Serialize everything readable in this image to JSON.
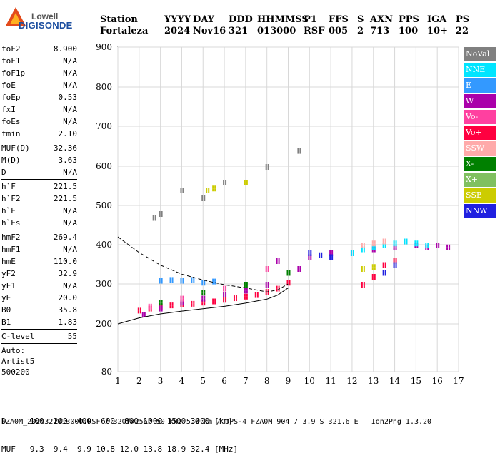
{
  "logo": {
    "name": "Lowell",
    "sub": "DIGISONDE"
  },
  "header": {
    "labels": [
      "Station",
      "YYYY",
      "DAY",
      "DDD",
      "HHMMSS",
      "P1",
      "FFS",
      "S",
      "AXN",
      "PPS",
      "IGA",
      "PS"
    ],
    "values": [
      "Fortaleza",
      "2024",
      "Nov16",
      "321",
      "013000",
      "RSF",
      "005",
      "2",
      "713",
      "100",
      "10+",
      "22"
    ]
  },
  "params": [
    [
      {
        "k": "foF2",
        "v": "8.900"
      },
      {
        "k": "foF1",
        "v": "N/A"
      },
      {
        "k": "foF1p",
        "v": "N/A"
      },
      {
        "k": "foE",
        "v": "N/A"
      },
      {
        "k": "foEp",
        "v": "0.53"
      },
      {
        "k": "fxI",
        "v": "N/A"
      },
      {
        "k": "foEs",
        "v": "N/A"
      },
      {
        "k": "fmin",
        "v": "2.10"
      }
    ],
    [
      {
        "k": "MUF(D)",
        "v": "32.36"
      },
      {
        "k": "M(D)",
        "v": "3.63"
      },
      {
        "k": "D",
        "v": "N/A"
      }
    ],
    [
      {
        "k": "h`F",
        "v": "221.5"
      },
      {
        "k": "h`F2",
        "v": "221.5"
      },
      {
        "k": "h`E",
        "v": "N/A"
      },
      {
        "k": "h`Es",
        "v": "N/A"
      }
    ],
    [
      {
        "k": "hmF2",
        "v": "269.4"
      },
      {
        "k": "hmF1",
        "v": "N/A"
      },
      {
        "k": "hmE",
        "v": "110.0"
      },
      {
        "k": "yF2",
        "v": "32.9"
      },
      {
        "k": "yF1",
        "v": "N/A"
      },
      {
        "k": "yE",
        "v": "20.0"
      },
      {
        "k": "B0",
        "v": "35.8"
      },
      {
        "k": "B1",
        "v": "1.83"
      }
    ],
    [
      {
        "k": "C-level",
        "v": "55"
      }
    ]
  ],
  "auto": {
    "line1": "Auto:",
    "line2": "Artist5",
    "line3": "500200"
  },
  "legend": [
    {
      "label": "NoVal",
      "color": "#808080"
    },
    {
      "label": "NNE",
      "color": "#00e5ff"
    },
    {
      "label": "E",
      "color": "#3399ff"
    },
    {
      "label": "W",
      "color": "#aa00aa"
    },
    {
      "label": "Vo-",
      "color": "#ff40a0"
    },
    {
      "label": "Vo+",
      "color": "#ff0040"
    },
    {
      "label": "SSW",
      "color": "#ffaaaa"
    },
    {
      "label": "X-",
      "color": "#008000"
    },
    {
      "label": "X+",
      "color": "#80c060"
    },
    {
      "label": "SSE",
      "color": "#cccc00"
    },
    {
      "label": "NNW",
      "color": "#2020e0"
    }
  ],
  "footer": {
    "line1": "D     100  200  400  600  800 1000 1500 3000 [km]",
    "line2": "MUF   9.3  9.4  9.9 10.8 12.0 13.8 18.9 32.4 [MHz]",
    "line3": "FZA0M_2024321013000.RSF / 320fx256h 50 kHz 5.0 km / DPS-4 FZA0M 904 / 3.9 S 321.6 E   Ion2Png 1.3.20"
  },
  "chart_data": {
    "type": "scatter",
    "title": "",
    "xlabel": "",
    "ylabel": "",
    "xlim": [
      1,
      17
    ],
    "ylim": [
      80,
      900
    ],
    "x_ticks": [
      1,
      2,
      3,
      4,
      5,
      6,
      7,
      8,
      9,
      10,
      11,
      12,
      13,
      14,
      15,
      16,
      17
    ],
    "y_ticks": [
      80,
      200,
      300,
      400,
      500,
      600,
      700,
      800,
      900
    ],
    "grid": true,
    "legend_position": "right",
    "series": [
      {
        "name": "Vo+",
        "color": "#ff0040",
        "points": [
          [
            2,
            235
          ],
          [
            2.5,
            240
          ],
          [
            3,
            245
          ],
          [
            3.5,
            248
          ],
          [
            4,
            250
          ],
          [
            4.5,
            252
          ],
          [
            5,
            255
          ],
          [
            5.5,
            258
          ],
          [
            6,
            262
          ],
          [
            6.5,
            266
          ],
          [
            7,
            270
          ],
          [
            7.5,
            274
          ],
          [
            8,
            282
          ],
          [
            8.5,
            290
          ],
          [
            9,
            305
          ],
          [
            12.5,
            300
          ],
          [
            13,
            320
          ],
          [
            13.5,
            350
          ],
          [
            14,
            360
          ]
        ]
      },
      {
        "name": "W",
        "color": "#aa00aa",
        "points": [
          [
            2.2,
            225
          ],
          [
            3,
            240
          ],
          [
            4,
            255
          ],
          [
            5,
            265
          ],
          [
            6,
            275
          ],
          [
            7,
            285
          ],
          [
            8,
            300
          ],
          [
            8.5,
            360
          ],
          [
            9.5,
            340
          ],
          [
            10,
            370
          ],
          [
            11,
            380
          ],
          [
            12,
            380
          ],
          [
            13,
            390
          ],
          [
            14,
            395
          ],
          [
            14.5,
            410
          ],
          [
            15,
            400
          ],
          [
            15.5,
            395
          ],
          [
            16,
            400
          ],
          [
            16.5,
            395
          ]
        ]
      },
      {
        "name": "NNE",
        "color": "#00e5ff",
        "points": [
          [
            12,
            380
          ],
          [
            12.5,
            390
          ],
          [
            13,
            395
          ],
          [
            13.5,
            400
          ],
          [
            14,
            405
          ],
          [
            14.5,
            410
          ],
          [
            15,
            405
          ],
          [
            15.5,
            400
          ]
        ]
      },
      {
        "name": "E",
        "color": "#3399ff",
        "points": [
          [
            3,
            310
          ],
          [
            3.5,
            312
          ],
          [
            4,
            310
          ],
          [
            4.5,
            312
          ],
          [
            5,
            305
          ],
          [
            5.5,
            308
          ]
        ]
      },
      {
        "name": "NNW",
        "color": "#2020e0",
        "points": [
          [
            10,
            380
          ],
          [
            10.5,
            375
          ],
          [
            11,
            370
          ],
          [
            13.5,
            330
          ],
          [
            14,
            350
          ]
        ]
      },
      {
        "name": "SSW",
        "color": "#ffaaaa",
        "points": [
          [
            12.5,
            400
          ],
          [
            13,
            405
          ],
          [
            13.5,
            410
          ]
        ]
      },
      {
        "name": "X-",
        "color": "#008000",
        "points": [
          [
            3,
            255
          ],
          [
            5,
            280
          ],
          [
            7,
            300
          ],
          [
            9,
            330
          ]
        ]
      },
      {
        "name": "SSE",
        "color": "#cccc00",
        "points": [
          [
            12.5,
            340
          ],
          [
            13,
            345
          ],
          [
            5.2,
            540
          ],
          [
            5.5,
            545
          ],
          [
            7,
            560
          ]
        ]
      },
      {
        "name": "Vo-",
        "color": "#ff40a0",
        "points": [
          [
            2.5,
            245
          ],
          [
            4,
            265
          ],
          [
            6,
            290
          ],
          [
            8,
            340
          ]
        ]
      },
      {
        "name": "NoVal",
        "color": "#808080",
        "points": [
          [
            2.7,
            470
          ],
          [
            3,
            480
          ],
          [
            4,
            540
          ],
          [
            5,
            520
          ],
          [
            6,
            560
          ],
          [
            8,
            600
          ],
          [
            9.5,
            640
          ]
        ]
      }
    ],
    "profile_curve": [
      [
        1,
        200
      ],
      [
        2,
        215
      ],
      [
        3,
        225
      ],
      [
        4,
        232
      ],
      [
        5,
        238
      ],
      [
        6,
        244
      ],
      [
        7,
        252
      ],
      [
        8,
        262
      ],
      [
        8.5,
        272
      ],
      [
        9,
        290
      ]
    ],
    "muf_curve": [
      [
        1,
        420
      ],
      [
        2,
        380
      ],
      [
        3,
        348
      ],
      [
        4,
        325
      ],
      [
        5,
        310
      ],
      [
        6,
        298
      ],
      [
        7,
        290
      ],
      [
        8,
        280
      ],
      [
        8.5,
        285
      ],
      [
        9,
        300
      ]
    ]
  }
}
